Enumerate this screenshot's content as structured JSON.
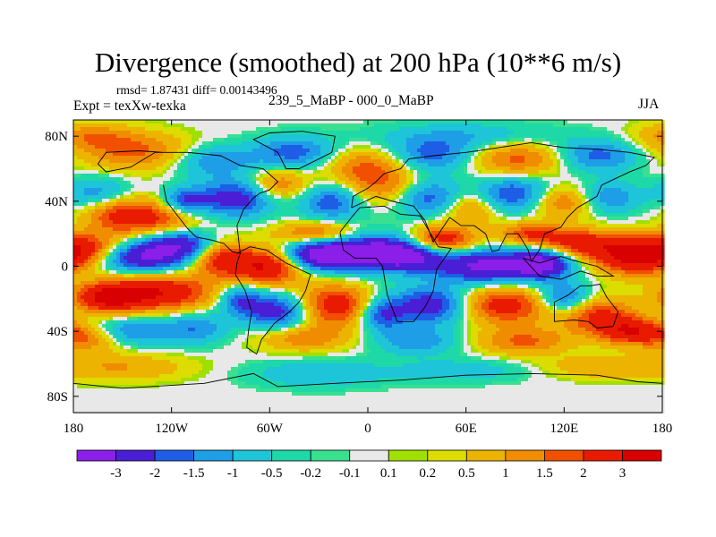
{
  "header": {
    "title": "Divergence (smoothed) at 200 hPa (10**6 m/s)",
    "stats": "rmsd= 1.87431 diff= 0.00143496",
    "left_label": "Expt = texXw-texka",
    "center_label": "239_5_MaBP - 000_0_MaBP",
    "right_label": "JJA"
  },
  "chart_data": {
    "type": "heatmap",
    "title": "Divergence (smoothed) at 200 hPa (10**6 m/s)",
    "subtitle": "239_5_MaBP - 000_0_MaBP",
    "units": "10**6 m/s",
    "projection": "cylindrical equidistant",
    "x_range": [
      -180,
      180
    ],
    "y_range": [
      -90,
      90
    ],
    "x_ticks": [
      -180,
      -120,
      -60,
      0,
      60,
      120,
      180
    ],
    "x_tick_labels": [
      "180",
      "120W",
      "60W",
      "0",
      "60E",
      "120E",
      "180"
    ],
    "y_ticks": [
      80,
      40,
      0,
      -40,
      -80
    ],
    "y_tick_labels": [
      "80N",
      "40N",
      "0",
      "40S",
      "80S"
    ],
    "colorbar": {
      "levels": [
        "-3",
        "-2",
        "-1.5",
        "-1",
        "-0.5",
        "-0.2",
        "-0.1",
        "0.1",
        "0.2",
        "0.5",
        "1",
        "1.5",
        "2",
        "3"
      ],
      "colors": [
        "#8b1ee8",
        "#4a1ed4",
        "#1e5ee6",
        "#1e9ee6",
        "#1ec4d8",
        "#1ed8a8",
        "#38e090",
        "#e8e8e8",
        "#a0e000",
        "#dcdc00",
        "#ecb400",
        "#f08c00",
        "#f05000",
        "#e81a00",
        "#d80000"
      ]
    },
    "features": [
      {
        "desc": "tropical divergence dipole",
        "lat_range": [
          -10,
          20
        ],
        "lon_range": [
          -180,
          180
        ],
        "sign": "mixed"
      },
      {
        "desc": "strong convergence over eastern Pacific",
        "lon": -140,
        "lat": 5,
        "value": -3
      },
      {
        "desc": "strong convergence over Atlantic/Africa",
        "lon": -10,
        "lat": 8,
        "value": -3
      },
      {
        "desc": "strong convergence over Indian Ocean",
        "lon": 75,
        "lat": 0,
        "value": -3
      },
      {
        "desc": "strong divergence western Pacific",
        "lon": 170,
        "lat": 5,
        "value": 3
      },
      {
        "desc": "strong divergence south Pacific",
        "lon": -125,
        "lat": -15,
        "value": 3
      }
    ]
  }
}
